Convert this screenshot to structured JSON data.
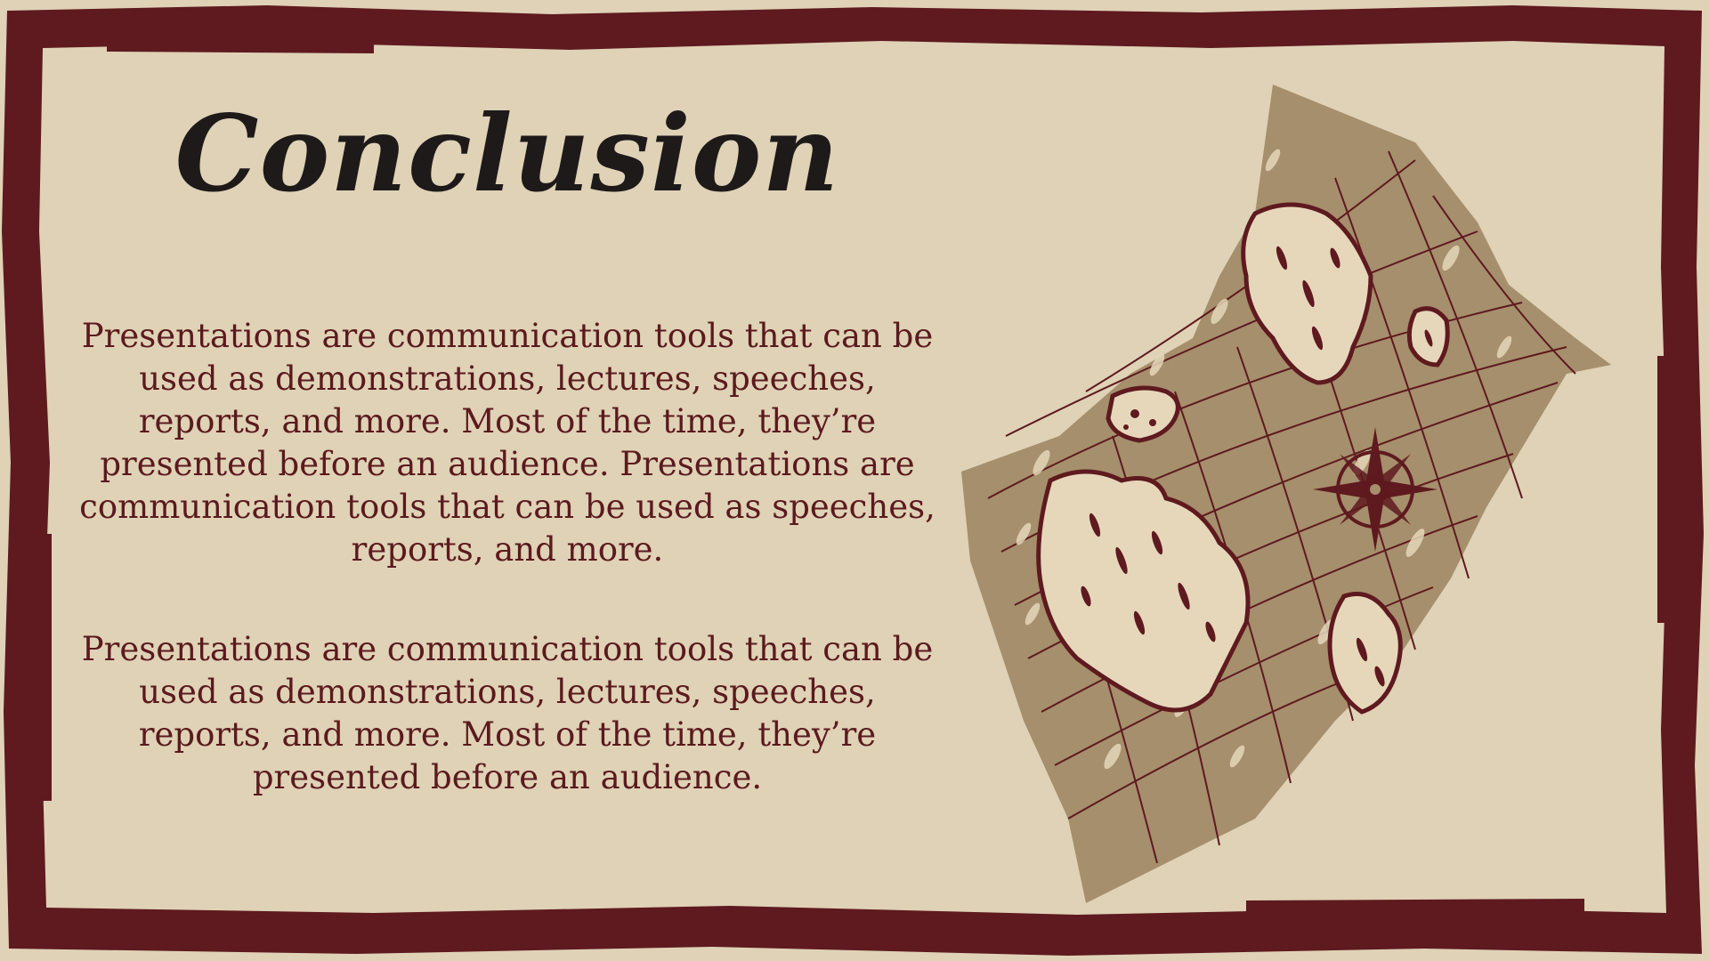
{
  "slide": {
    "title": "Conclusion",
    "paragraphs": [
      "Presentations are communication tools that can be used as demonstrations, lectures, speeches, reports, and more. Most of the time, they’re presented before an audience. Presentations are communication tools that can be used as speeches, reports, and more.",
      "Presentations are communication tools that can be used as demonstrations, lectures, speeches, reports, and more. Most of the time, they’re presented before an audience."
    ]
  },
  "colors": {
    "background": "#dfd2b6",
    "frame": "#5e1a1f",
    "title": "#1e1a1a",
    "body_text": "#5b1a1d",
    "map_paper": "#a68f6c",
    "island_fill": "#e6d7bb",
    "map_lines": "#5e1a1f"
  },
  "icons": {
    "illustration": "treasure-map-icon",
    "compass": "compass-rose-icon"
  }
}
